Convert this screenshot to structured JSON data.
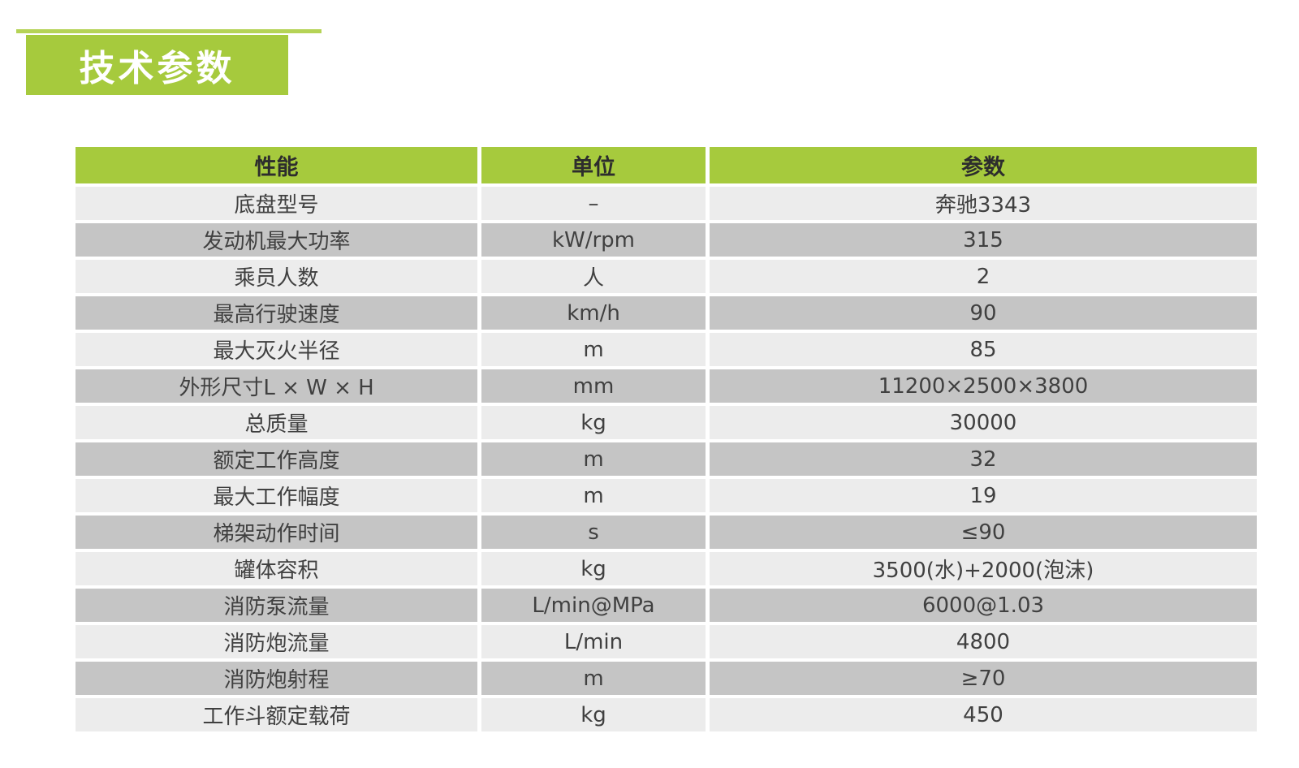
{
  "title_block": {
    "label": "技术参数"
  },
  "colors": {
    "accent_green": "#a6ca3d",
    "accent_line_green": "#b5d356",
    "row_light": "#ececec",
    "row_dark": "#c5c5c5",
    "header_text": "#2d2d2d",
    "cell_text": "#404040",
    "title_text": "#ffffff"
  },
  "table": {
    "headers": [
      "性能",
      "单位",
      "参数"
    ],
    "rows": [
      {
        "property": "底盘型号",
        "unit": "–",
        "value": "奔驰3343"
      },
      {
        "property": "发动机最大功率",
        "unit": "kW/rpm",
        "value": "315"
      },
      {
        "property": "乘员人数",
        "unit": "人",
        "value": "2"
      },
      {
        "property": "最高行驶速度",
        "unit": "km/h",
        "value": "90"
      },
      {
        "property": "最大灭火半径",
        "unit": "m",
        "value": "85"
      },
      {
        "property": "外形尺寸L × W × H",
        "unit": "mm",
        "value": "11200×2500×3800"
      },
      {
        "property": "总质量",
        "unit": "kg",
        "value": "30000"
      },
      {
        "property": "额定工作高度",
        "unit": "m",
        "value": "32"
      },
      {
        "property": "最大工作幅度",
        "unit": "m",
        "value": "19"
      },
      {
        "property": "梯架动作时间",
        "unit": "s",
        "value": "≤90"
      },
      {
        "property": "罐体容积",
        "unit": "kg",
        "value": "3500(水)+2000(泡沫)"
      },
      {
        "property": "消防泵流量",
        "unit": "L/min@MPa",
        "value": "6000@1.03"
      },
      {
        "property": "消防炮流量",
        "unit": "L/min",
        "value": "4800"
      },
      {
        "property": "消防炮射程",
        "unit": "m",
        "value": "≥70"
      },
      {
        "property": "工作斗额定载荷",
        "unit": "kg",
        "value": "450"
      }
    ]
  }
}
